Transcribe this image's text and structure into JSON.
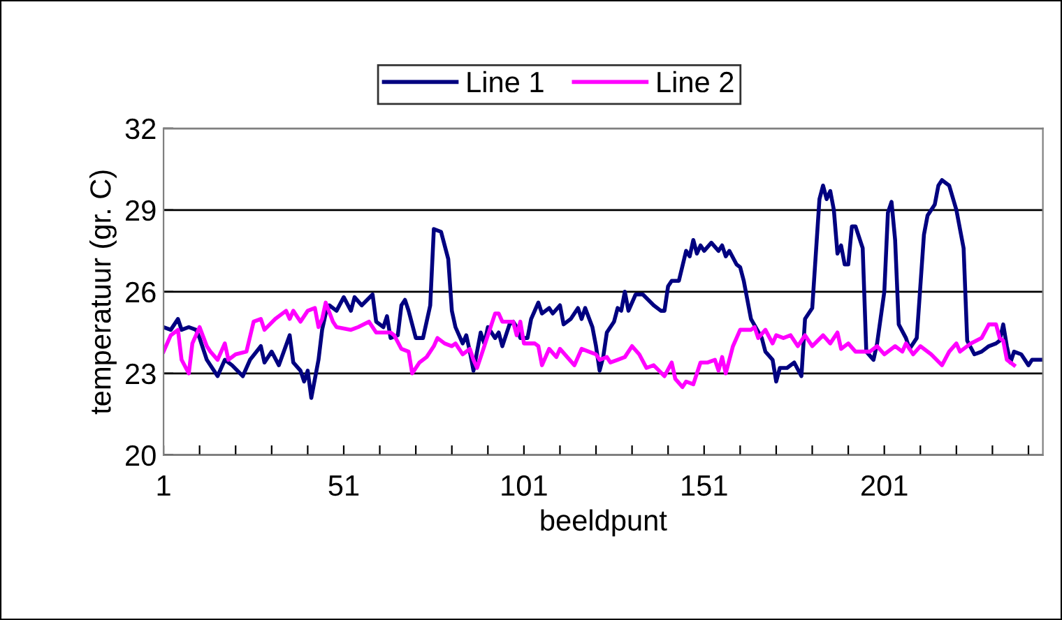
{
  "chart_data": {
    "type": "line",
    "xlabel": "beeldpunt",
    "ylabel": "temperatuur (gr. C)",
    "xlim": [
      1,
      245
    ],
    "ylim": [
      20,
      32
    ],
    "yticks": [
      20,
      23,
      26,
      29,
      32
    ],
    "xticks": [
      1,
      {
        "value": 11,
        "label": null
      },
      {
        "value": 21,
        "label": null
      },
      {
        "value": 31,
        "label": null
      },
      {
        "value": 41,
        "label": null
      },
      51,
      {
        "value": 61,
        "label": null
      },
      {
        "value": 71,
        "label": null
      },
      {
        "value": 81,
        "label": null
      },
      {
        "value": 91,
        "label": null
      },
      101,
      {
        "value": 111,
        "label": null
      },
      {
        "value": 121,
        "label": null
      },
      {
        "value": 131,
        "label": null
      },
      {
        "value": 141,
        "label": null
      },
      151,
      {
        "value": 161,
        "label": null
      },
      {
        "value": 171,
        "label": null
      },
      {
        "value": 181,
        "label": null
      },
      {
        "value": 191,
        "label": null
      },
      201,
      {
        "value": 211,
        "label": null
      },
      {
        "value": 221,
        "label": null
      },
      {
        "value": 231,
        "label": null
      },
      {
        "value": 241,
        "label": null
      }
    ],
    "grid": "y",
    "legend": "top",
    "marker": "none",
    "line_style": "solid",
    "series": [
      {
        "name": "Line 1",
        "color": "#000080",
        "x": [
          1,
          3,
          5,
          6,
          8,
          10,
          11,
          13,
          16,
          18,
          20,
          23,
          25,
          28,
          29,
          31,
          33,
          36,
          37,
          39,
          40,
          41,
          42,
          44,
          45,
          46,
          47,
          49,
          51,
          53,
          54,
          56,
          59,
          60,
          62,
          63,
          64,
          66,
          67,
          68,
          69,
          71,
          73,
          75,
          76,
          78,
          80,
          81,
          82,
          84,
          85,
          86,
          87,
          89,
          90,
          91,
          93,
          94,
          95,
          97,
          98,
          99,
          100,
          102,
          103,
          105,
          106,
          108,
          109,
          111,
          112,
          114,
          116,
          117,
          118,
          120,
          121,
          122,
          123,
          124,
          126,
          127,
          128,
          129,
          130,
          132,
          134,
          137,
          139,
          140,
          141,
          142,
          144,
          146,
          147,
          148,
          149,
          150,
          151,
          153,
          155,
          156,
          157,
          158,
          160,
          161,
          162,
          164,
          167,
          168,
          170,
          171,
          172,
          174,
          176,
          178,
          179,
          181,
          183,
          184,
          185,
          186,
          187,
          188,
          189,
          190,
          191,
          192,
          193,
          195,
          196,
          198,
          199,
          201,
          202,
          203,
          204,
          205,
          207,
          208,
          210,
          212,
          213,
          215,
          216,
          217,
          219,
          221,
          223,
          224,
          226,
          228,
          230,
          232,
          233,
          234,
          235,
          236,
          237,
          239,
          241,
          242,
          245
        ],
        "values": [
          24.7,
          24.6,
          25.0,
          24.6,
          24.7,
          24.6,
          24.3,
          23.5,
          22.9,
          23.5,
          23.3,
          22.9,
          23.5,
          24.0,
          23.4,
          23.8,
          23.3,
          24.4,
          23.4,
          23.1,
          22.7,
          23.1,
          22.1,
          23.5,
          24.6,
          25.2,
          25.5,
          25.3,
          25.8,
          25.3,
          25.8,
          25.5,
          25.9,
          24.9,
          24.7,
          25.1,
          24.3,
          24.4,
          25.5,
          25.7,
          25.3,
          24.3,
          24.3,
          25.5,
          28.3,
          28.2,
          27.2,
          25.3,
          24.7,
          24.1,
          24.4,
          23.8,
          23.1,
          24.5,
          24.1,
          24.7,
          24.3,
          24.5,
          24.0,
          24.8,
          24.9,
          24.7,
          24.3,
          24.3,
          25.0,
          25.6,
          25.2,
          25.4,
          25.2,
          25.5,
          24.8,
          25.0,
          25.4,
          25.0,
          25.4,
          24.7,
          24.0,
          23.1,
          23.6,
          24.5,
          24.9,
          25.4,
          25.3,
          26.0,
          25.3,
          25.9,
          25.9,
          25.5,
          25.3,
          25.3,
          26.2,
          26.4,
          26.4,
          27.5,
          27.3,
          27.9,
          27.4,
          27.7,
          27.5,
          27.8,
          27.5,
          27.7,
          27.3,
          27.5,
          27.0,
          26.9,
          26.4,
          25.0,
          24.3,
          23.8,
          23.5,
          22.7,
          23.2,
          23.2,
          23.4,
          22.9,
          25.0,
          25.4,
          29.4,
          29.9,
          29.4,
          29.7,
          29.0,
          27.4,
          27.7,
          27.0,
          27.0,
          28.4,
          28.4,
          27.6,
          23.8,
          23.5,
          24.1,
          26.0,
          28.9,
          29.3,
          27.9,
          24.8,
          24.3,
          23.9,
          24.3,
          28.1,
          28.8,
          29.2,
          29.9,
          30.1,
          29.9,
          29.0,
          27.6,
          24.2,
          23.7,
          23.8,
          24.0,
          24.1,
          24.2,
          24.8,
          24.0,
          23.4,
          23.8,
          23.7,
          23.3,
          23.5,
          23.5
        ]
      },
      {
        "name": "Line 2",
        "color": "#ff00ff",
        "x": [
          1,
          3,
          5,
          6,
          8,
          9,
          11,
          13,
          14,
          16,
          18,
          19,
          21,
          24,
          26,
          28,
          29,
          32,
          35,
          36,
          37,
          39,
          41,
          43,
          44,
          45,
          46,
          48,
          49,
          53,
          55,
          58,
          60,
          62,
          64,
          65,
          67,
          69,
          70,
          72,
          74,
          76,
          77,
          79,
          81,
          82,
          84,
          86,
          87,
          88,
          90,
          93,
          94,
          95,
          98,
          99,
          100,
          101,
          104,
          105,
          106,
          108,
          110,
          111,
          113,
          115,
          117,
          119,
          121,
          122,
          124,
          125,
          127,
          129,
          131,
          133,
          135,
          137,
          140,
          142,
          143,
          145,
          146,
          148,
          150,
          152,
          154,
          155,
          156,
          157,
          159,
          160,
          161,
          164,
          165,
          166,
          168,
          170,
          171,
          173,
          175,
          177,
          179,
          181,
          184,
          186,
          188,
          189,
          191,
          193,
          197,
          199,
          201,
          204,
          206,
          207,
          209,
          211,
          214,
          217,
          219,
          221,
          222,
          225,
          228,
          230,
          232,
          233,
          234,
          235,
          237
        ],
        "values": [
          23.8,
          24.4,
          24.6,
          23.5,
          23.0,
          24.1,
          24.7,
          24.0,
          23.8,
          23.5,
          24.1,
          23.5,
          23.7,
          23.8,
          24.9,
          25.0,
          24.6,
          25.0,
          25.3,
          25.0,
          25.3,
          24.9,
          25.3,
          25.4,
          24.7,
          25.0,
          25.6,
          24.9,
          24.7,
          24.6,
          24.7,
          24.9,
          24.5,
          24.5,
          24.5,
          24.4,
          23.9,
          23.8,
          23.0,
          23.4,
          23.6,
          24.0,
          24.3,
          24.1,
          24.0,
          24.1,
          23.7,
          23.9,
          23.5,
          23.2,
          24.0,
          25.2,
          25.2,
          24.9,
          24.9,
          24.4,
          24.9,
          24.1,
          24.1,
          24.0,
          23.3,
          23.9,
          23.6,
          23.9,
          23.6,
          23.3,
          23.9,
          23.8,
          23.7,
          23.5,
          23.6,
          23.4,
          23.5,
          23.6,
          24.0,
          23.7,
          23.2,
          23.3,
          22.9,
          23.4,
          22.8,
          22.5,
          22.7,
          22.6,
          23.4,
          23.4,
          23.5,
          23.1,
          23.6,
          23.0,
          24.0,
          24.3,
          24.6,
          24.6,
          24.7,
          24.3,
          24.6,
          24.1,
          24.4,
          24.3,
          24.4,
          24.0,
          24.4,
          24.0,
          24.4,
          24.1,
          24.5,
          23.9,
          24.1,
          23.8,
          23.8,
          24.0,
          23.7,
          24.0,
          23.8,
          24.1,
          23.7,
          24.0,
          23.7,
          23.3,
          23.8,
          24.1,
          23.8,
          24.1,
          24.3,
          24.8,
          24.8,
          24.3,
          24.2,
          23.5,
          23.3
        ]
      }
    ]
  }
}
